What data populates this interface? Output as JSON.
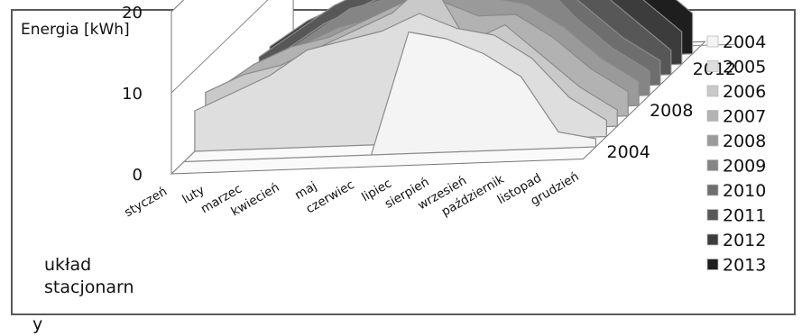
{
  "chart_data": {
    "type": "area",
    "variant": "3d-ribbon",
    "ylabel": "Energia [kWh]",
    "ylim": [
      0,
      20
    ],
    "y_ticks": [
      "0",
      "10",
      "20"
    ],
    "z_ticks": [
      "2004",
      "2008",
      "2012"
    ],
    "legend_position": "right",
    "grid": true,
    "categories": [
      "styczeń",
      "luty",
      "marzec",
      "kwiecień",
      "maj",
      "czerwiec",
      "lipiec",
      "sierpień",
      "wrzesień",
      "październik",
      "listopad",
      "grudzień"
    ],
    "series": [
      {
        "name": "2004",
        "color": "#f4f4f4",
        "values": [
          0,
          0,
          0,
          0,
          0,
          0,
          15,
          14,
          12,
          9,
          2,
          1
        ]
      },
      {
        "name": "2005",
        "color": "#dedede",
        "values": [
          5,
          7,
          9,
          12,
          13,
          14,
          16,
          14,
          13,
          10,
          5,
          2
        ]
      },
      {
        "name": "2006",
        "color": "#c9c9c9",
        "values": [
          6,
          8,
          9,
          11,
          13,
          15,
          19,
          11,
          13,
          9,
          5,
          2
        ]
      },
      {
        "name": "2007",
        "color": "#b2b2b2",
        "values": [
          5,
          8,
          10,
          11,
          13,
          15,
          15,
          13,
          13,
          10,
          6,
          3
        ]
      },
      {
        "name": "2008",
        "color": "#9a9a9a",
        "values": [
          4,
          7,
          9,
          11,
          12,
          14,
          15,
          14,
          13,
          10,
          6,
          3
        ]
      },
      {
        "name": "2009",
        "color": "#858585",
        "values": [
          4,
          6,
          9,
          12,
          13,
          15,
          15,
          14,
          15,
          10,
          6,
          3
        ]
      },
      {
        "name": "2010",
        "color": "#6e6e6e",
        "values": [
          3,
          6,
          9,
          11,
          13,
          14,
          14,
          14,
          14,
          10,
          6,
          3
        ]
      },
      {
        "name": "2011",
        "color": "#575757",
        "values": [
          4,
          7,
          10,
          12,
          14,
          15,
          16,
          15,
          15,
          11,
          7,
          3
        ]
      },
      {
        "name": "2012",
        "color": "#3c3c3c",
        "values": [
          4,
          7,
          9,
          12,
          14,
          15,
          17,
          16,
          17,
          12,
          8,
          4
        ]
      },
      {
        "name": "2013",
        "color": "#1e1e1e",
        "values": [
          3,
          6,
          9,
          12,
          14,
          15,
          17,
          16,
          18,
          13,
          9,
          5
        ]
      }
    ]
  },
  "caption": {
    "line1": "układ",
    "line2": "stacjonarn",
    "line3": "y"
  }
}
